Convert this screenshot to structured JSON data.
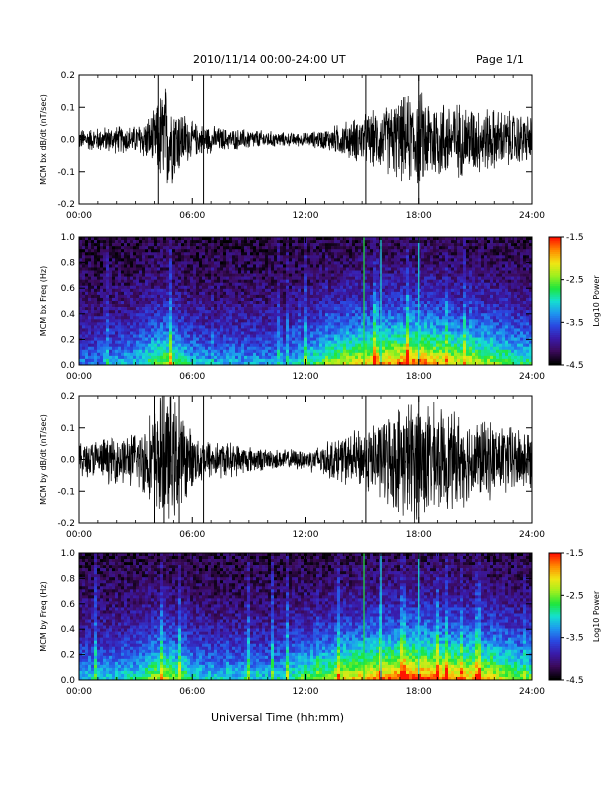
{
  "header": {
    "title": "2010/11/14  00:00-24:00 UT",
    "page_label": "Page 1/1"
  },
  "footer": {
    "xlabel": "Universal Time (hh:mm)"
  },
  "colors": {
    "trace": "#000000",
    "colormap": [
      "#000000",
      "#3b0a5a",
      "#3a1aa8",
      "#2a46e0",
      "#1e96f0",
      "#14e0d0",
      "#1ee63c",
      "#a0f01e",
      "#f0e614",
      "#ff8c00",
      "#ff1400"
    ]
  },
  "chart_data": [
    {
      "type": "line",
      "ylabel": "MCM bx dB/dt (nT/sec)",
      "x_ticks": [
        "00:00",
        "06:00",
        "12:00",
        "18:00",
        "24:00"
      ],
      "y_ticks": [
        "0.2",
        "0.1",
        "0.0",
        "-0.1",
        "-0.2"
      ],
      "xlim_hours": [
        0,
        24
      ],
      "ylim": [
        -0.2,
        0.2
      ],
      "envelope": {
        "x_hours": [
          0,
          1,
          2,
          3,
          4,
          4.5,
          5,
          6,
          7,
          8,
          9,
          10,
          11,
          12,
          13,
          14,
          15,
          16,
          17,
          18,
          19,
          20,
          21,
          22,
          23,
          24
        ],
        "amplitude": [
          0.03,
          0.035,
          0.04,
          0.04,
          0.08,
          0.17,
          0.12,
          0.05,
          0.04,
          0.03,
          0.03,
          0.025,
          0.02,
          0.02,
          0.03,
          0.05,
          0.07,
          0.09,
          0.12,
          0.14,
          0.12,
          0.11,
          0.1,
          0.09,
          0.08,
          0.07
        ]
      },
      "spikes_hours": [
        4.2,
        6.6,
        15.2,
        18.0
      ]
    },
    {
      "type": "heatmap",
      "ylabel": "MCM bx Freq (Hz)",
      "x_ticks": [
        "00:00",
        "06:00",
        "12:00",
        "18:00",
        "24:00"
      ],
      "y_ticks": [
        "1.0",
        "0.8",
        "0.6",
        "0.4",
        "0.2",
        "0.0"
      ],
      "xlim_hours": [
        0,
        24
      ],
      "ylim": [
        0,
        1.0
      ],
      "colorbar": {
        "label": "Log10 Power",
        "ticks": [
          "-1.5",
          "-2.5",
          "-3.5",
          "-4.5"
        ],
        "range": [
          -4.5,
          -1.5
        ]
      },
      "activity": {
        "x_hours": [
          0,
          1,
          2,
          3,
          4,
          4.5,
          5,
          6,
          7,
          8,
          9,
          10,
          11,
          12,
          13,
          14,
          15,
          16,
          17,
          18,
          19,
          20,
          21,
          22,
          23,
          24
        ],
        "level": [
          0.3,
          0.3,
          0.35,
          0.4,
          0.55,
          0.6,
          0.55,
          0.4,
          0.35,
          0.35,
          0.35,
          0.35,
          0.35,
          0.45,
          0.55,
          0.65,
          0.7,
          0.75,
          0.8,
          0.85,
          0.75,
          0.7,
          0.65,
          0.6,
          0.5,
          0.5
        ]
      },
      "bands_hours": [
        15.1,
        16.0,
        18.0
      ]
    },
    {
      "type": "line",
      "ylabel": "MCM by dB/dt (nT/sec)",
      "x_ticks": [
        "00:00",
        "06:00",
        "12:00",
        "18:00",
        "24:00"
      ],
      "y_ticks": [
        "0.2",
        "0.1",
        "0.0",
        "-0.1",
        "-0.2"
      ],
      "xlim_hours": [
        0,
        24
      ],
      "ylim": [
        -0.2,
        0.2
      ],
      "envelope": {
        "x_hours": [
          0,
          1,
          2,
          3,
          4,
          4.5,
          5,
          6,
          7,
          8,
          9,
          10,
          11,
          12,
          13,
          14,
          15,
          16,
          17,
          18,
          19,
          20,
          21,
          22,
          23,
          24
        ],
        "amplitude": [
          0.05,
          0.06,
          0.07,
          0.08,
          0.15,
          0.2,
          0.18,
          0.08,
          0.06,
          0.05,
          0.04,
          0.03,
          0.03,
          0.03,
          0.05,
          0.07,
          0.09,
          0.12,
          0.16,
          0.19,
          0.15,
          0.14,
          0.12,
          0.11,
          0.1,
          0.09
        ]
      },
      "spikes_hours": [
        4.0,
        4.5,
        5.3,
        6.6,
        15.2,
        18.0
      ]
    },
    {
      "type": "heatmap",
      "ylabel": "MCM by Freq (Hz)",
      "x_ticks": [
        "00:00",
        "06:00",
        "12:00",
        "18:00",
        "24:00"
      ],
      "y_ticks": [
        "1.0",
        "0.8",
        "0.6",
        "0.4",
        "0.2",
        "0.0"
      ],
      "xlim_hours": [
        0,
        24
      ],
      "ylim": [
        0,
        1.0
      ],
      "colorbar": {
        "label": "Log10 Power",
        "ticks": [
          "-1.5",
          "-2.5",
          "-3.5",
          "-4.5"
        ],
        "range": [
          -4.5,
          -1.5
        ]
      },
      "activity": {
        "x_hours": [
          0,
          1,
          2,
          3,
          4,
          4.5,
          5,
          6,
          7,
          8,
          9,
          10,
          11,
          12,
          13,
          14,
          15,
          16,
          17,
          18,
          19,
          20,
          21,
          22,
          23,
          24
        ],
        "level": [
          0.4,
          0.4,
          0.42,
          0.45,
          0.6,
          0.65,
          0.6,
          0.45,
          0.4,
          0.4,
          0.4,
          0.4,
          0.45,
          0.55,
          0.6,
          0.7,
          0.75,
          0.8,
          0.85,
          0.9,
          0.85,
          0.8,
          0.75,
          0.7,
          0.6,
          0.55
        ]
      },
      "bands_hours": [
        15.1,
        16.0,
        18.0
      ]
    }
  ]
}
